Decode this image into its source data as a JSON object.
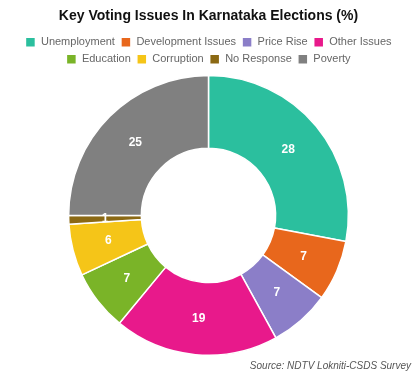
{
  "chart_data": {
    "type": "doughnut",
    "title": "Key Voting Issues In Karnataka Elections (%)",
    "source": "Source: NDTV Lokniti-CSDS Survey",
    "categories": [
      "Unemployment",
      "Development Issues",
      "Price Rise",
      "Other Issues",
      "Education",
      "Corruption",
      "No Response",
      "Poverty"
    ],
    "values": [
      28,
      7,
      7,
      19,
      7,
      6,
      1,
      25
    ],
    "colors": [
      "#2bbf9e",
      "#e8671c",
      "#8b7ec8",
      "#e8198b",
      "#7ab428",
      "#f5c518",
      "#8b6914",
      "#808080"
    ],
    "data_labels": true,
    "legend": "top"
  }
}
